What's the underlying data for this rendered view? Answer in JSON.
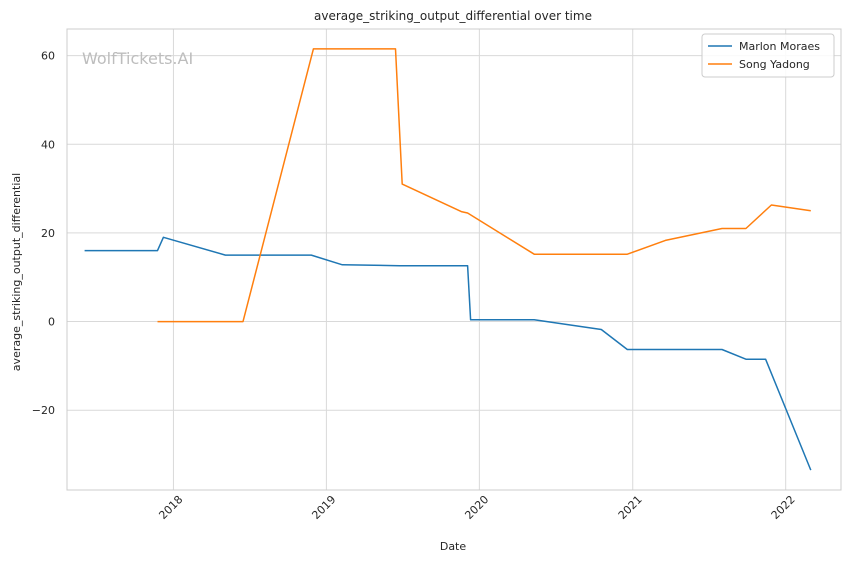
{
  "chart_data": {
    "type": "line",
    "title": "average_striking_output_differential over time",
    "xlabel": "Date",
    "ylabel": "average_striking_output_differential",
    "watermark": "WolfTickets.AI",
    "xlim": [
      "2017-04-22",
      "2022-05-13"
    ],
    "ylim": [
      -38,
      66
    ],
    "x_ticks": [
      {
        "date": "2018-01-01",
        "label": "2018"
      },
      {
        "date": "2019-01-01",
        "label": "2019"
      },
      {
        "date": "2020-01-01",
        "label": "2020"
      },
      {
        "date": "2021-01-01",
        "label": "2021"
      },
      {
        "date": "2022-01-01",
        "label": "2022"
      }
    ],
    "y_ticks": [
      {
        "value": -20,
        "label": "−20"
      },
      {
        "value": 0,
        "label": "0"
      },
      {
        "value": 20,
        "label": "20"
      },
      {
        "value": 40,
        "label": "40"
      },
      {
        "value": 60,
        "label": "60"
      }
    ],
    "grid": true,
    "legend_position": "top-right",
    "series": [
      {
        "name": "Marlon Moraes",
        "color": "#1f77b4",
        "points": [
          [
            "2017-06-03",
            16
          ],
          [
            "2017-11-24",
            16
          ],
          [
            "2017-12-08",
            19
          ],
          [
            "2018-05-05",
            15
          ],
          [
            "2018-11-26",
            15
          ],
          [
            "2019-02-08",
            12.8
          ],
          [
            "2019-06-25",
            12.6
          ],
          [
            "2019-12-04",
            12.6
          ],
          [
            "2019-12-11",
            0.4
          ],
          [
            "2020-05-11",
            0.4
          ],
          [
            "2020-10-18",
            -1.8
          ],
          [
            "2020-12-19",
            -6.3
          ],
          [
            "2021-08-02",
            -6.3
          ],
          [
            "2021-09-28",
            -8.5
          ],
          [
            "2021-11-14",
            -8.5
          ],
          [
            "2022-03-02",
            -33.5
          ]
        ]
      },
      {
        "name": "Song Yadong",
        "color": "#ff7f0e",
        "points": [
          [
            "2017-11-24",
            0
          ],
          [
            "2018-06-16",
            0
          ],
          [
            "2018-12-01",
            61.5
          ],
          [
            "2019-06-15",
            61.5
          ],
          [
            "2019-07-01",
            31
          ],
          [
            "2019-11-19",
            24.8
          ],
          [
            "2019-12-04",
            24.5
          ],
          [
            "2020-05-11",
            15.2
          ],
          [
            "2020-12-19",
            15.2
          ],
          [
            "2021-03-20",
            18.3
          ],
          [
            "2021-08-02",
            21
          ],
          [
            "2021-09-28",
            21
          ],
          [
            "2021-11-28",
            26.3
          ],
          [
            "2022-03-02",
            25
          ]
        ]
      }
    ]
  }
}
